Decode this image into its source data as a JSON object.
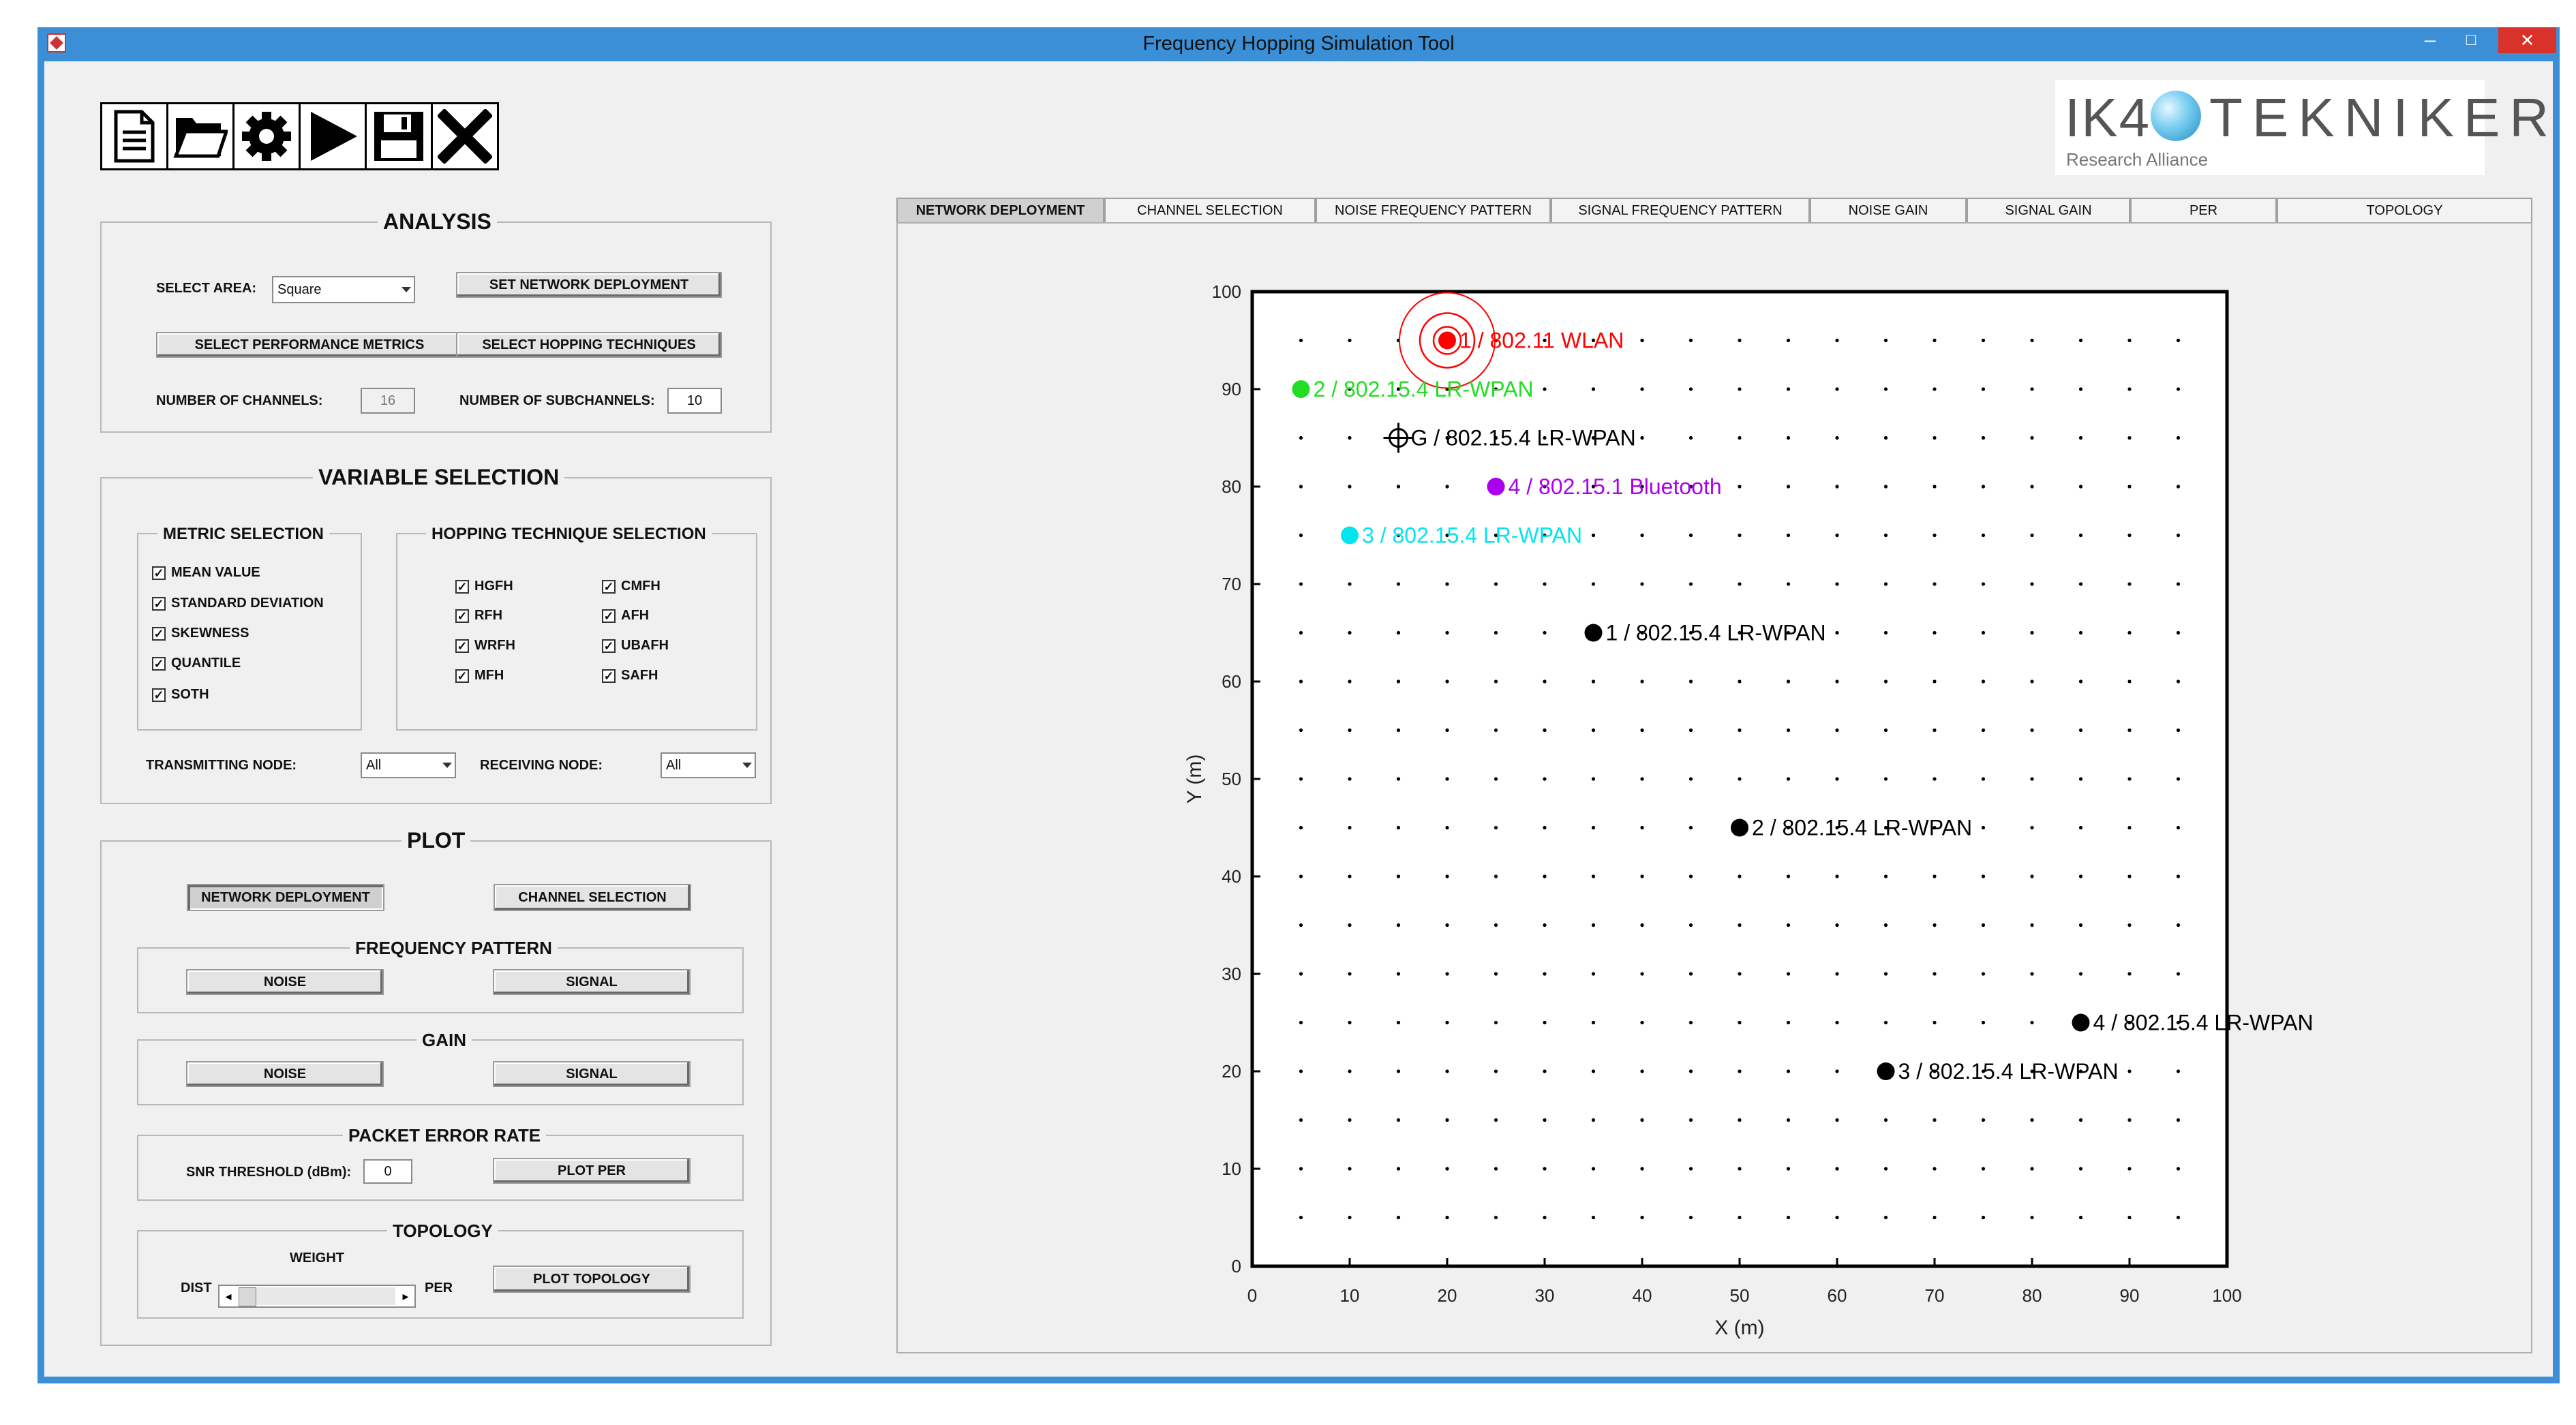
{
  "window": {
    "title": "Frequency Hopping Simulation Tool",
    "min": "–",
    "max": "□",
    "close": "✕"
  },
  "toolbar": {
    "icons": [
      "new-file-icon",
      "open-folder-icon",
      "settings-gear-icon",
      "run-play-icon",
      "save-disk-icon",
      "close-x-icon"
    ]
  },
  "logo": {
    "brand_left": "IK4",
    "brand_right": "TEKNIKER",
    "tagline": "Research Alliance"
  },
  "analysis": {
    "title": "ANALYSIS",
    "select_area_label": "SELECT AREA:",
    "select_area_value": "Square",
    "set_network_btn": "SET NETWORK DEPLOYMENT",
    "select_metrics_btn": "SELECT PERFORMANCE METRICS",
    "select_hopping_btn": "SELECT HOPPING TECHNIQUES",
    "num_channels_label": "NUMBER OF CHANNELS:",
    "num_channels_value": "16",
    "num_subchannels_label": "NUMBER OF SUBCHANNELS:",
    "num_subchannels_value": "10"
  },
  "variable": {
    "title": "VARIABLE SELECTION",
    "metric_title": "METRIC SELECTION",
    "metrics": [
      "MEAN VALUE",
      "STANDARD DEVIATION",
      "SKEWNESS",
      "QUANTILE",
      "SOTH"
    ],
    "hopping_title": "HOPPING TECHNIQUE SELECTION",
    "hopping_col1": [
      "HGFH",
      "RFH",
      "WRFH",
      "MFH"
    ],
    "hopping_col2": [
      "CMFH",
      "AFH",
      "UBAFH",
      "SAFH"
    ],
    "transmitting_label": "TRANSMITTING NODE:",
    "transmitting_value": "All",
    "receiving_label": "RECEIVING NODE:",
    "receiving_value": "All"
  },
  "plot": {
    "title": "PLOT",
    "network_btn": "NETWORK DEPLOYMENT",
    "channel_btn": "CHANNEL SELECTION",
    "freq_title": "FREQUENCY PATTERN",
    "gain_title": "GAIN",
    "noise_btn": "NOISE",
    "signal_btn": "SIGNAL",
    "per_title": "PACKET ERROR RATE",
    "snr_label": "SNR THRESHOLD (dBm):",
    "snr_value": "0",
    "plot_per_btn": "PLOT PER",
    "topology_title": "TOPOLOGY",
    "weight_label": "WEIGHT",
    "dist_label": "DIST",
    "per_label": "PER",
    "plot_topology_btn": "PLOT TOPOLOGY"
  },
  "tabs": [
    "NETWORK DEPLOYMENT",
    "CHANNEL SELECTION",
    "NOISE FREQUENCY PATTERN",
    "SIGNAL FREQUENCY PATTERN",
    "NOISE GAIN",
    "SIGNAL GAIN",
    "PER",
    "TOPOLOGY"
  ],
  "active_tab": 0,
  "chart_data": {
    "type": "scatter",
    "xlabel": "X (m)",
    "ylabel": "Y (m)",
    "xlim": [
      0,
      100
    ],
    "ylim": [
      0,
      100
    ],
    "xticks": [
      0,
      10,
      20,
      30,
      40,
      50,
      60,
      70,
      80,
      90,
      100
    ],
    "yticks": [
      0,
      10,
      20,
      30,
      40,
      50,
      60,
      70,
      80,
      90,
      100
    ],
    "grid_points_spacing": 5,
    "points": [
      {
        "x": 20,
        "y": 95,
        "label": "1 / 802.11   WLAN",
        "color": "#ff0000",
        "marker": "target"
      },
      {
        "x": 5,
        "y": 90,
        "label": "2 / 802.15.4 LR-WPAN",
        "color": "#22dd22",
        "marker": "dot"
      },
      {
        "x": 15,
        "y": 85,
        "label": "G  / 802.15.4 LR-WPAN",
        "color": "#000000",
        "marker": "crosshair"
      },
      {
        "x": 25,
        "y": 80,
        "label": "4 / 802.15.1 Bluetooth",
        "color": "#aa00ee",
        "marker": "dot"
      },
      {
        "x": 10,
        "y": 75,
        "label": "3 / 802.15.4 LR-WPAN",
        "color": "#00e5ee",
        "marker": "dot"
      },
      {
        "x": 35,
        "y": 65,
        "label": "1 / 802.15.4 LR-WPAN",
        "color": "#000000",
        "marker": "dot"
      },
      {
        "x": 50,
        "y": 45,
        "label": "2 / 802.15.4 LR-WPAN",
        "color": "#000000",
        "marker": "dot"
      },
      {
        "x": 85,
        "y": 25,
        "label": "4 / 802.15.4 LR-WPAN",
        "color": "#000000",
        "marker": "dot"
      },
      {
        "x": 65,
        "y": 20,
        "label": "3 / 802.15.4 LR-WPAN",
        "color": "#000000",
        "marker": "dot"
      }
    ]
  }
}
